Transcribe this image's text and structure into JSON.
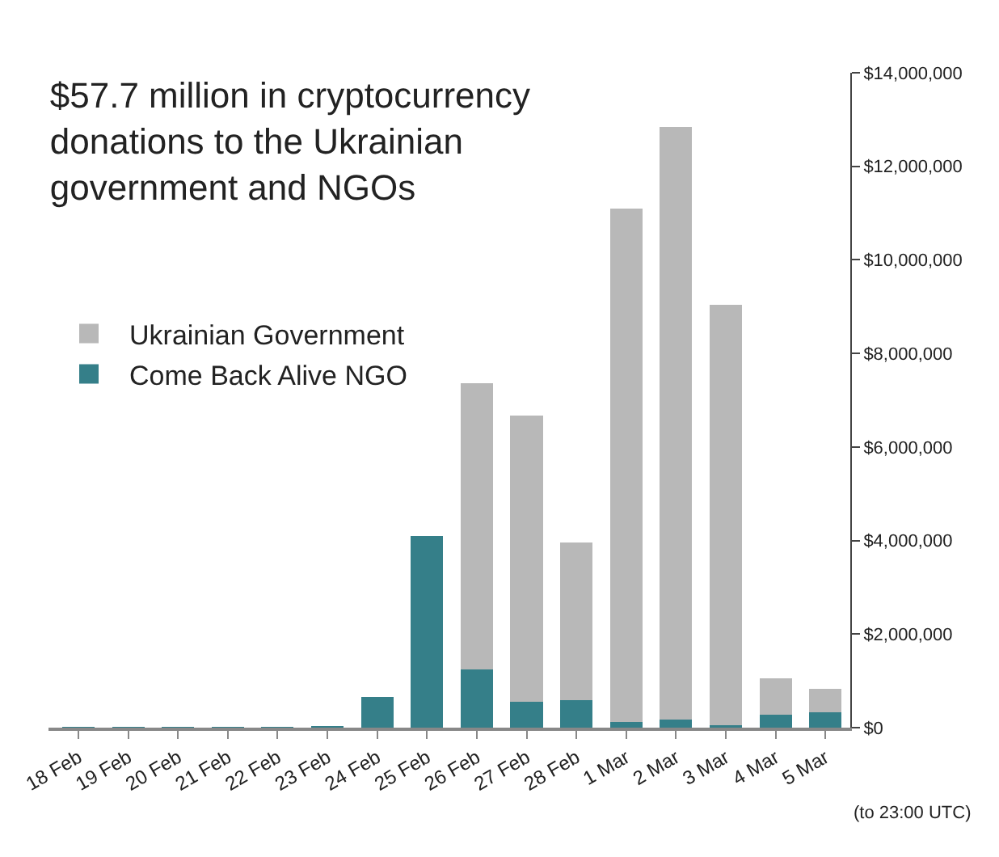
{
  "chart_data": {
    "type": "bar",
    "title": "$57.7 million in cryptocurrency\ndonations to the Ukrainian\ngovernment and NGOs",
    "categories": [
      "18 Feb",
      "19 Feb",
      "20 Feb",
      "21 Feb",
      "22 Feb",
      "23 Feb",
      "24 Feb",
      "25 Feb",
      "26 Feb",
      "27 Feb",
      "28 Feb",
      "1 Mar",
      "2 Mar",
      "3 Mar",
      "4 Mar",
      "5 Mar"
    ],
    "stacked": true,
    "series": [
      {
        "name": "Come Back Alive NGO",
        "color": "#357f89",
        "values": [
          10000,
          10000,
          10000,
          10000,
          10000,
          30000,
          650000,
          4100000,
          1240000,
          560000,
          590000,
          120000,
          180000,
          60000,
          270000,
          320000
        ]
      },
      {
        "name": "Ukrainian Government",
        "color": "#b8b8b8",
        "values": [
          0,
          0,
          0,
          0,
          0,
          0,
          0,
          0,
          6120000,
          6120000,
          3370000,
          10980000,
          12670000,
          8980000,
          790000,
          510000
        ]
      }
    ],
    "ylim": [
      0,
      14000000
    ],
    "yticks": [
      {
        "value": 0,
        "label": "$0"
      },
      {
        "value": 2000000,
        "label": "$2,000,000"
      },
      {
        "value": 4000000,
        "label": "$4,000,000"
      },
      {
        "value": 6000000,
        "label": "$6,000,000"
      },
      {
        "value": 8000000,
        "label": "$8,000,000"
      },
      {
        "value": 10000000,
        "label": "$10,000,000"
      },
      {
        "value": 12000000,
        "label": "$12,000,000"
      },
      {
        "value": 14000000,
        "label": "$14,000,000"
      }
    ],
    "annotations": [
      "(to 23:00 UTC)"
    ],
    "legend": "left",
    "grid": false
  }
}
